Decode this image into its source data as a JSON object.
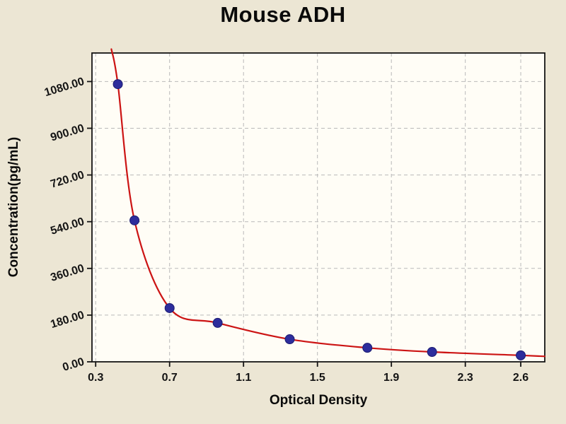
{
  "colors": {
    "background": "#ece6d4",
    "plot_background": "#fffdf6",
    "grid": "#b9b9b9",
    "axis": "#141414",
    "curve": "#cc1414",
    "point_fill": "#2d2d9c",
    "point_edge": "#1b1b70"
  },
  "chart_data": {
    "type": "scatter",
    "title": "Mouse ADH",
    "xlabel": "Optical Density",
    "ylabel": "Concentration(pg/mL)",
    "xlim": [
      0.28,
      2.73
    ],
    "ylim": [
      0,
      1190
    ],
    "grid": true,
    "legend": "none",
    "x_ticks": [
      0.3,
      0.7,
      1.1,
      1.5,
      1.9,
      2.3,
      2.6
    ],
    "x_tick_labels": [
      "0.3",
      "0.7",
      "1.1",
      "1.5",
      "1.9",
      "2.3",
      "2.6"
    ],
    "y_ticks": [
      0,
      180,
      360,
      540,
      720,
      900,
      1080
    ],
    "y_tick_labels": [
      "0.00",
      "180.00",
      "360.00",
      "540.00",
      "720.00",
      "900.00",
      "1080.00"
    ],
    "points": [
      {
        "x": 0.42,
        "y": 1070
      },
      {
        "x": 0.51,
        "y": 545
      },
      {
        "x": 0.7,
        "y": 207
      },
      {
        "x": 0.96,
        "y": 150
      },
      {
        "x": 1.35,
        "y": 87
      },
      {
        "x": 1.77,
        "y": 54
      },
      {
        "x": 2.12,
        "y": 38
      },
      {
        "x": 2.6,
        "y": 25
      }
    ],
    "curve": [
      {
        "x": 0.385,
        "y": 1205
      },
      {
        "x": 0.42,
        "y": 1070
      },
      {
        "x": 0.51,
        "y": 545
      },
      {
        "x": 0.7,
        "y": 207
      },
      {
        "x": 0.96,
        "y": 150
      },
      {
        "x": 1.35,
        "y": 87
      },
      {
        "x": 1.77,
        "y": 54
      },
      {
        "x": 2.12,
        "y": 38
      },
      {
        "x": 2.6,
        "y": 25
      },
      {
        "x": 2.73,
        "y": 21
      }
    ]
  }
}
